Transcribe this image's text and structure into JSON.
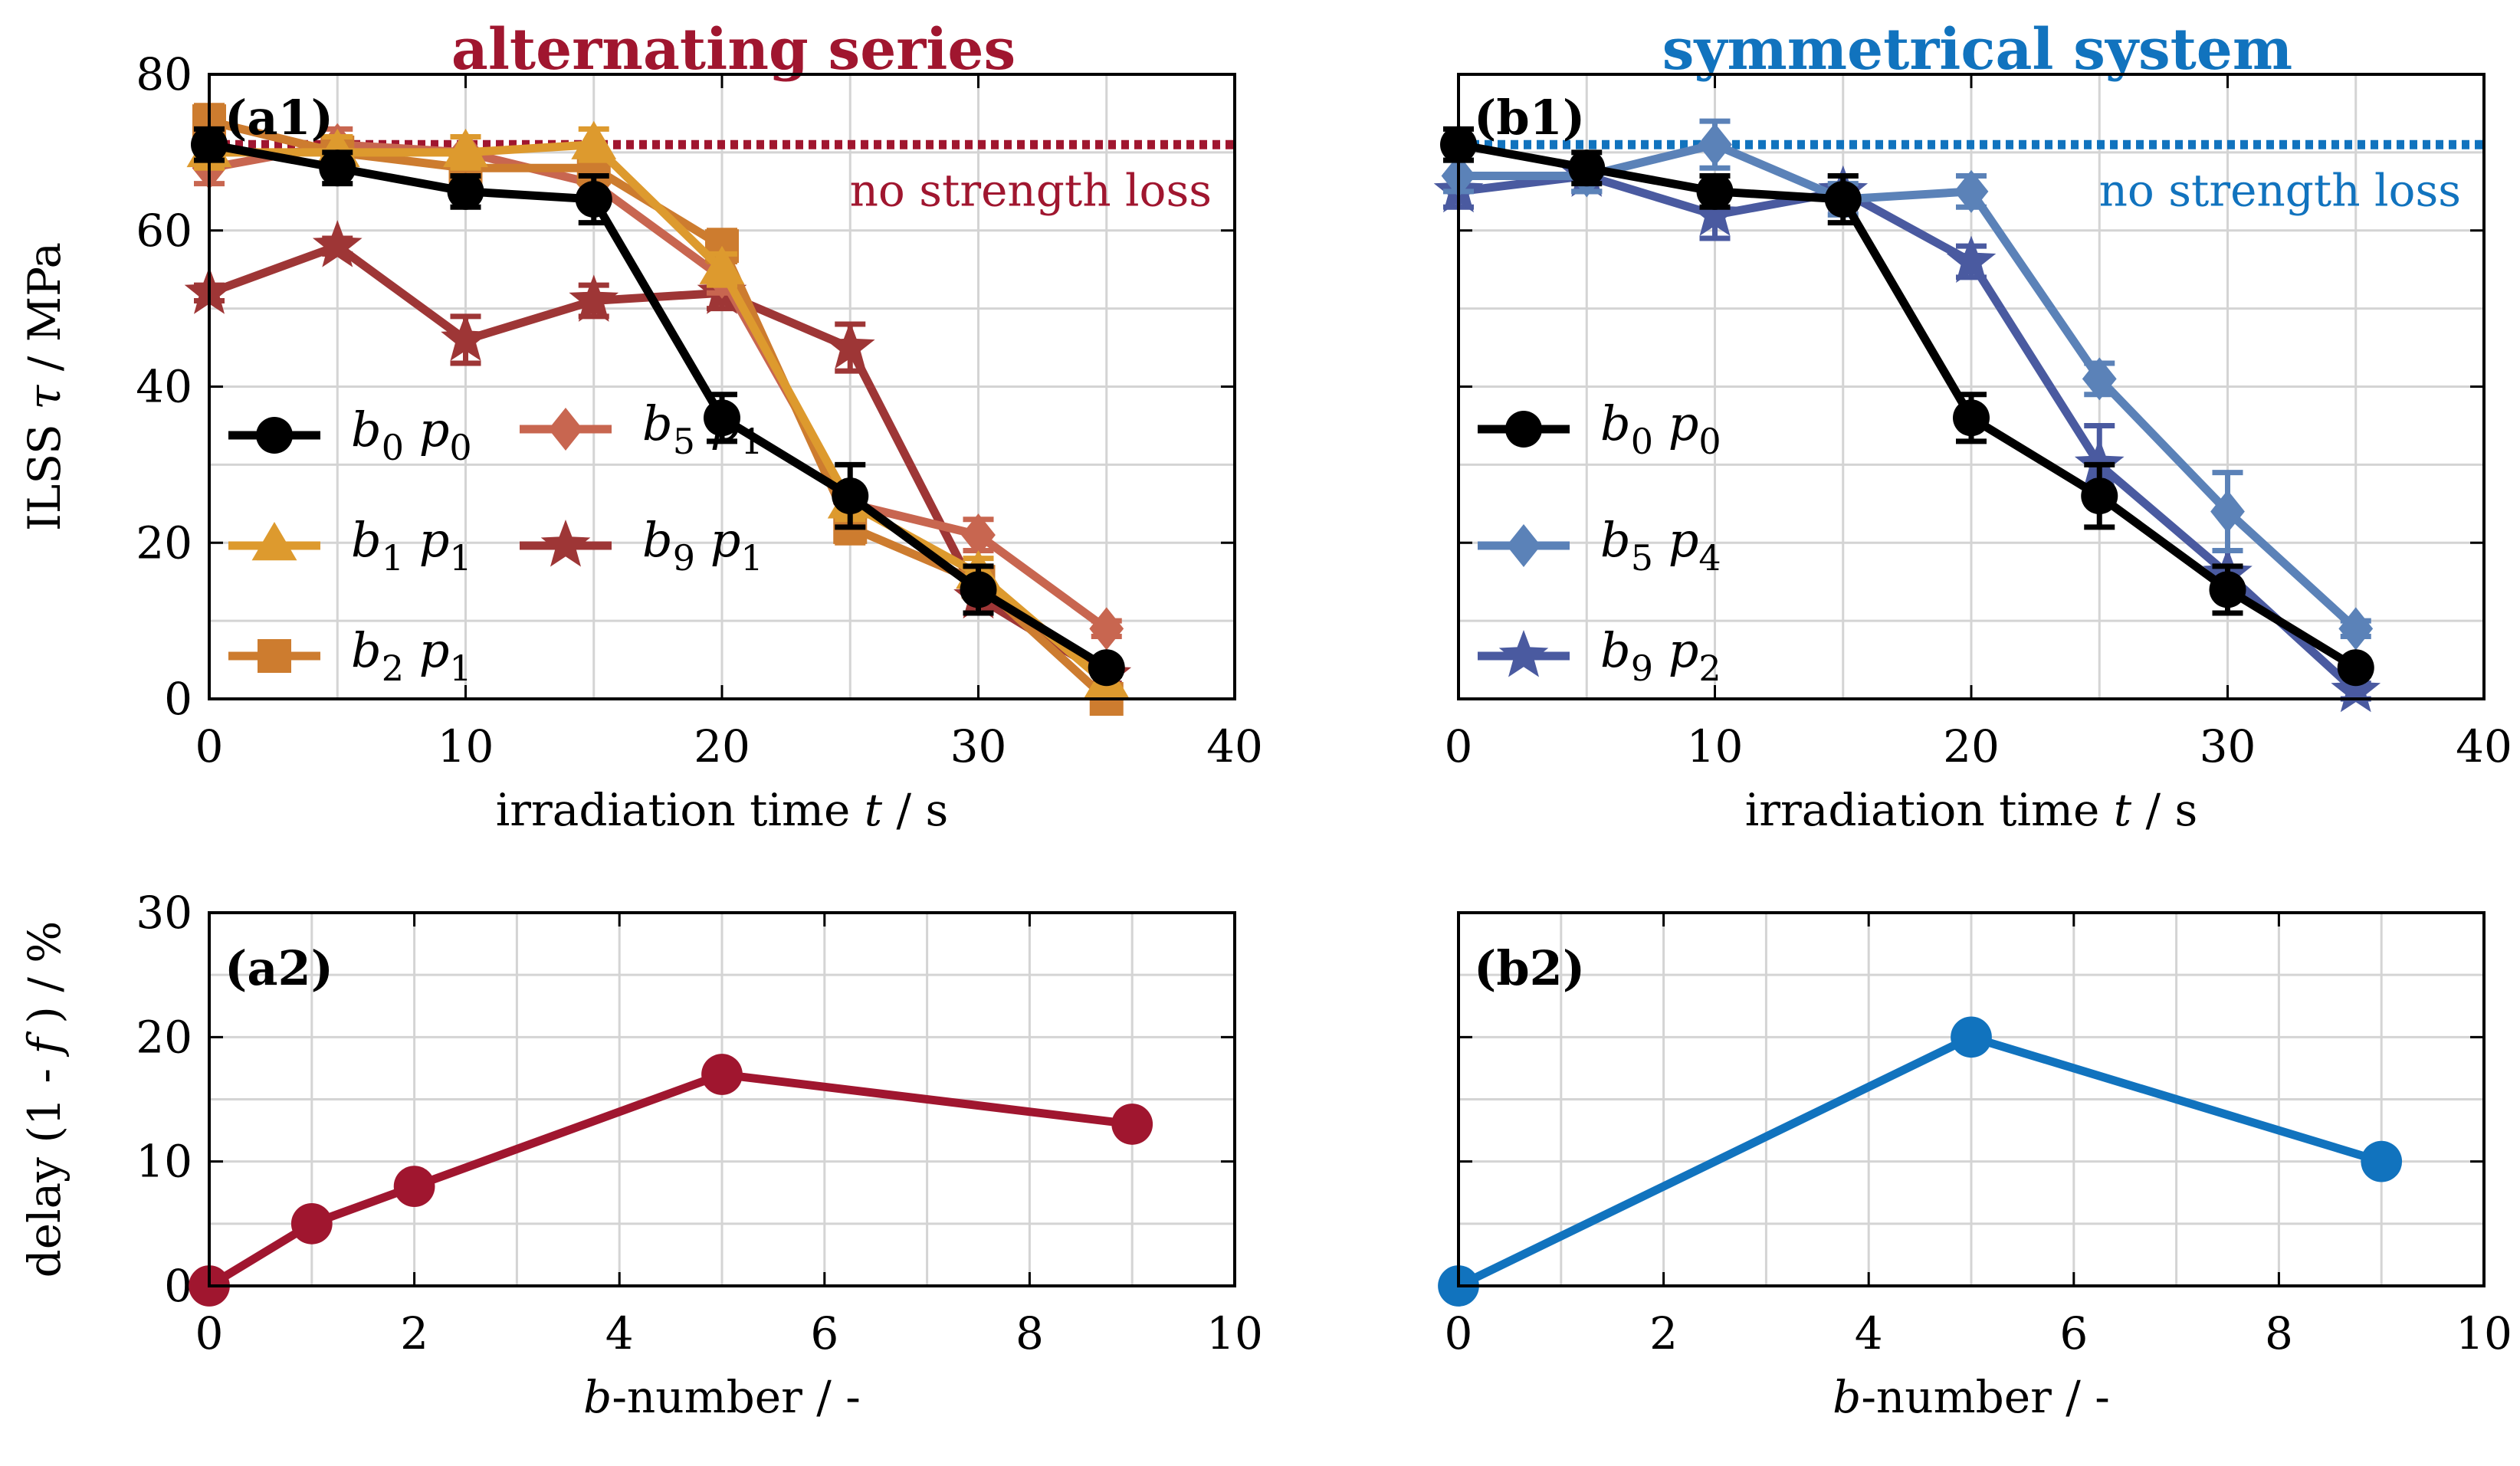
{
  "panel_titles": {
    "a": "alternating series",
    "b": "symmetrical system"
  },
  "reference_label": "no strength loss",
  "colors": {
    "red_dark": "#a0162f",
    "blue": "#1173be",
    "black": "#000000",
    "gold": "#dd9a2e",
    "orange": "#cd7c2f",
    "salmon": "#c86650",
    "brown_red": "#9e3636",
    "blue_light": "#5b82b8",
    "blue_purple": "#4a5aa0",
    "grid": "#d4d4d4"
  },
  "chart_data": [
    {
      "id": "a1",
      "type": "line",
      "panel_label": "(a1)",
      "xlabel": "irradiation time t / s",
      "ylabel": "ILSS τ / MPa",
      "xlim": [
        0,
        40
      ],
      "ylim": [
        0,
        80
      ],
      "xticks": [
        0,
        10,
        20,
        30,
        40
      ],
      "yticks": [
        0,
        20,
        40,
        60,
        80
      ],
      "grid": true,
      "reference_line": {
        "y": 71,
        "label": "no strength loss"
      },
      "legend_position": "center-left, two columns",
      "series": [
        {
          "name": "b0 p0",
          "b": "0",
          "p": "0",
          "color_key": "black",
          "marker": "circle",
          "x": [
            0,
            5,
            10,
            15,
            20,
            25,
            30,
            35
          ],
          "y": [
            71,
            68,
            65,
            64,
            36,
            26,
            14,
            4
          ],
          "err": [
            2,
            2,
            2,
            3,
            3,
            4,
            3,
            1
          ]
        },
        {
          "name": "b1 p1",
          "b": "1",
          "p": "1",
          "color_key": "gold",
          "marker": "triangle",
          "x": [
            0,
            5,
            10,
            15,
            20,
            25,
            30,
            35
          ],
          "y": [
            70,
            70,
            70,
            71,
            55,
            25,
            16,
            2
          ],
          "err": [
            2,
            2,
            2,
            2,
            2,
            2,
            2,
            1
          ]
        },
        {
          "name": "b2 p1",
          "b": "2",
          "p": "1",
          "color_key": "orange",
          "marker": "square",
          "x": [
            0,
            5,
            10,
            15,
            20,
            25,
            30,
            35
          ],
          "y": [
            74,
            70,
            68,
            68,
            58,
            22,
            15,
            0
          ],
          "err": [
            2,
            2,
            2,
            2,
            2,
            2,
            2,
            1
          ]
        },
        {
          "name": "b5 p1",
          "b": "5",
          "p": "1",
          "color_key": "salmon",
          "marker": "diamond",
          "x": [
            0,
            5,
            10,
            15,
            20,
            25,
            30,
            35
          ],
          "y": [
            68,
            71,
            70,
            66,
            54,
            25,
            21,
            9
          ],
          "err": [
            2,
            2,
            2,
            2,
            2,
            2,
            2,
            1
          ]
        },
        {
          "name": "b9 p1",
          "b": "9",
          "p": "1",
          "color_key": "brown_red",
          "marker": "star",
          "x": [
            0,
            5,
            10,
            15,
            20,
            25,
            30,
            35
          ],
          "y": [
            52,
            58,
            46,
            51,
            52,
            45,
            13,
            3
          ],
          "err": [
            1,
            1,
            3,
            2,
            2,
            3,
            2,
            1
          ]
        }
      ]
    },
    {
      "id": "b1",
      "type": "line",
      "panel_label": "(b1)",
      "xlabel": "irradiation time t / s",
      "ylabel": "",
      "xlim": [
        0,
        40
      ],
      "ylim": [
        0,
        80
      ],
      "xticks": [
        0,
        10,
        20,
        30,
        40
      ],
      "yticks": [
        0,
        20,
        40,
        60,
        80
      ],
      "grid": true,
      "reference_line": {
        "y": 71,
        "label": "no strength loss"
      },
      "legend_position": "center-left",
      "series": [
        {
          "name": "b0 p0",
          "b": "0",
          "p": "0",
          "color_key": "black",
          "marker": "circle",
          "x": [
            0,
            5,
            10,
            15,
            20,
            25,
            30,
            35
          ],
          "y": [
            71,
            68,
            65,
            64,
            36,
            26,
            14,
            4
          ],
          "err": [
            2,
            2,
            2,
            3,
            3,
            4,
            3,
            1
          ]
        },
        {
          "name": "b5 p4",
          "b": "5",
          "p": "4",
          "color_key": "blue_light",
          "marker": "diamond",
          "x": [
            0,
            5,
            10,
            15,
            20,
            25,
            30,
            35
          ],
          "y": [
            67,
            67,
            71,
            64,
            65,
            41,
            24,
            9
          ],
          "err": [
            2,
            2,
            3,
            2,
            2,
            2,
            5,
            1
          ]
        },
        {
          "name": "b9 p2",
          "b": "9",
          "p": "2",
          "color_key": "blue_purple",
          "marker": "star",
          "x": [
            0,
            5,
            10,
            15,
            20,
            25,
            30,
            35
          ],
          "y": [
            65,
            67,
            62,
            65,
            56,
            30,
            16,
            1
          ],
          "err": [
            2,
            2,
            3,
            2,
            2,
            5,
            3,
            1
          ]
        }
      ]
    },
    {
      "id": "a2",
      "type": "line",
      "panel_label": "(a2)",
      "xlabel": "b-number / -",
      "ylabel": "delay (1 - f) / %",
      "xlim": [
        0,
        10
      ],
      "ylim": [
        0,
        30
      ],
      "xticks": [
        0,
        2,
        4,
        6,
        8,
        10
      ],
      "yticks": [
        0,
        10,
        20,
        30
      ],
      "grid": true,
      "series": [
        {
          "name": "alternating series",
          "color_key": "red_dark",
          "marker": "circle",
          "x": [
            0,
            1,
            2,
            5,
            9
          ],
          "y": [
            0,
            5,
            8,
            17,
            13
          ]
        }
      ]
    },
    {
      "id": "b2",
      "type": "line",
      "panel_label": "(b2)",
      "xlabel": "b-number / -",
      "ylabel": "",
      "xlim": [
        0,
        10
      ],
      "ylim": [
        0,
        30
      ],
      "xticks": [
        0,
        2,
        4,
        6,
        8,
        10
      ],
      "yticks": [
        0,
        10,
        20,
        30
      ],
      "grid": true,
      "series": [
        {
          "name": "symmetrical system",
          "color_key": "blue",
          "marker": "circle",
          "x": [
            0,
            5,
            9
          ],
          "y": [
            0,
            20,
            10
          ]
        }
      ]
    }
  ]
}
